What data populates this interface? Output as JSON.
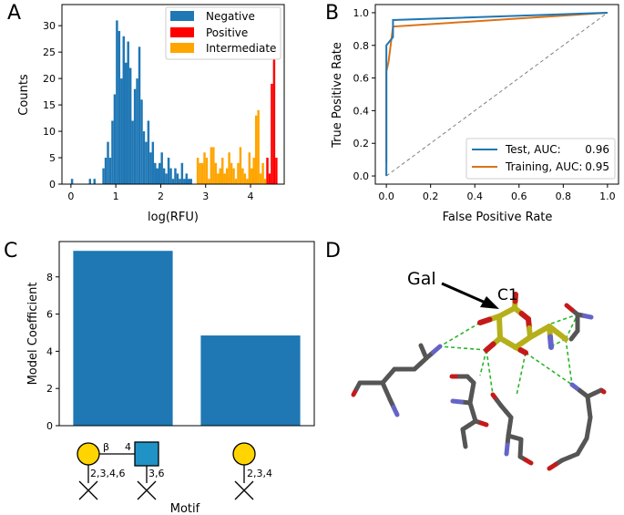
{
  "panels": {
    "A": "A",
    "B": "B",
    "C": "C",
    "D": "D"
  },
  "chart_data": [
    {
      "panel": "A",
      "type": "bar",
      "xlabel": "log(RFU)",
      "ylabel": "Counts",
      "xlim": [
        -0.2,
        4.75
      ],
      "ylim": [
        0,
        34
      ],
      "xticks": [
        "0",
        "1",
        "2",
        "3",
        "4"
      ],
      "yticks": [
        "0",
        "5",
        "10",
        "15",
        "20",
        "25",
        "30"
      ],
      "legend_position": "top-right",
      "bin_width": 0.05,
      "series": [
        {
          "name": "Negative",
          "color": "#1f77b4",
          "x": [
            0.0,
            0.4,
            0.5,
            0.7,
            0.75,
            0.8,
            0.85,
            0.9,
            0.95,
            1.0,
            1.05,
            1.1,
            1.15,
            1.2,
            1.25,
            1.3,
            1.35,
            1.4,
            1.45,
            1.5,
            1.55,
            1.6,
            1.65,
            1.7,
            1.75,
            1.8,
            1.85,
            1.9,
            1.95,
            2.0,
            2.05,
            2.1,
            2.15,
            2.2,
            2.25,
            2.3,
            2.35,
            2.4,
            2.45,
            2.5,
            2.55,
            2.6,
            2.65
          ],
          "values": [
            1,
            1,
            1,
            3,
            5,
            8,
            5,
            12,
            17,
            31,
            29,
            20,
            28,
            23,
            27,
            22,
            12,
            18,
            20,
            26,
            16,
            10,
            8,
            12,
            6,
            8,
            4,
            3,
            4,
            6,
            3,
            2,
            5,
            3,
            1,
            3,
            2,
            1,
            4,
            1,
            2,
            1,
            1
          ]
        },
        {
          "name": "Positive",
          "color": "#ff0000",
          "x": [
            4.35,
            4.4,
            4.45,
            4.5,
            4.55
          ],
          "values": [
            5,
            2,
            19,
            33,
            5
          ]
        },
        {
          "name": "Intermediate",
          "color": "#ffa500",
          "x": [
            2.8,
            2.85,
            2.9,
            2.95,
            3.0,
            3.05,
            3.1,
            3.15,
            3.2,
            3.25,
            3.3,
            3.35,
            3.4,
            3.45,
            3.5,
            3.55,
            3.6,
            3.65,
            3.7,
            3.75,
            3.8,
            3.85,
            3.9,
            3.95,
            4.0,
            4.05,
            4.1,
            4.15,
            4.2,
            4.25,
            4.3
          ],
          "values": [
            5,
            4,
            4,
            6,
            5,
            1,
            7,
            7,
            4,
            2,
            3,
            5,
            2,
            3,
            6,
            4,
            3,
            1,
            4,
            7,
            3,
            2,
            1,
            6,
            3,
            5,
            13,
            14,
            2,
            4,
            1
          ]
        }
      ]
    },
    {
      "panel": "B",
      "type": "line",
      "xlabel": "False Positive Rate",
      "ylabel": "True Positive Rate",
      "xlim": [
        -0.05,
        1.05
      ],
      "ylim": [
        -0.05,
        1.05
      ],
      "xticks": [
        "0.0",
        "0.2",
        "0.4",
        "0.6",
        "0.8",
        "1.0"
      ],
      "yticks": [
        "0.0",
        "0.2",
        "0.4",
        "0.6",
        "0.8",
        "1.0"
      ],
      "legend_position": "lower-right",
      "series": [
        {
          "name": "Test, AUC:",
          "auc": "0.96",
          "color": "#1f77b4",
          "x": [
            0.0,
            0.0,
            0.03,
            0.03,
            1.0
          ],
          "y": [
            0.0,
            0.8,
            0.85,
            0.955,
            1.0
          ]
        },
        {
          "name": "Training, AUC:",
          "auc": "0.95",
          "color": "#d97316",
          "x": [
            0.0,
            0.0,
            0.01,
            0.03,
            1.0
          ],
          "y": [
            0.08,
            0.64,
            0.7,
            0.915,
            1.0
          ]
        },
        {
          "name": "chance",
          "color": "#808080",
          "dashed": true,
          "x": [
            0.0,
            1.0
          ],
          "y": [
            0.0,
            1.0
          ]
        }
      ]
    },
    {
      "panel": "C",
      "type": "bar",
      "xlabel": "Motif",
      "ylabel": "Model Coefficient",
      "ylim": [
        0,
        9.9
      ],
      "yticks": [
        "0",
        "2",
        "4",
        "6",
        "8"
      ],
      "categories": [
        "Galβ4GlcNAc",
        "Gal"
      ],
      "values": [
        9.4,
        4.85
      ],
      "color": "#1f77b4",
      "motif_labels": {
        "link_beta": "β",
        "link_pos": "4",
        "gal_sites_1": "2,3,4,6",
        "glcnac_sites": "3,6",
        "gal_sites_2": "2,3,4"
      }
    }
  ],
  "structure": {
    "residue_label": "Gal",
    "atom_label": "C1"
  },
  "colors": {
    "blue": "#1f77b4",
    "orange": "#d97316",
    "red": "#ff0000",
    "amber": "#ffa500",
    "gal_yellow": "#ffd400",
    "glcnac_blue": "#1f93c6",
    "sugar_carbon": "#b5b01a",
    "protein_carbon": "#555555",
    "oxygen": "#c41a1a",
    "nitrogen": "#6464c8",
    "hbond": "#2bb52b"
  }
}
